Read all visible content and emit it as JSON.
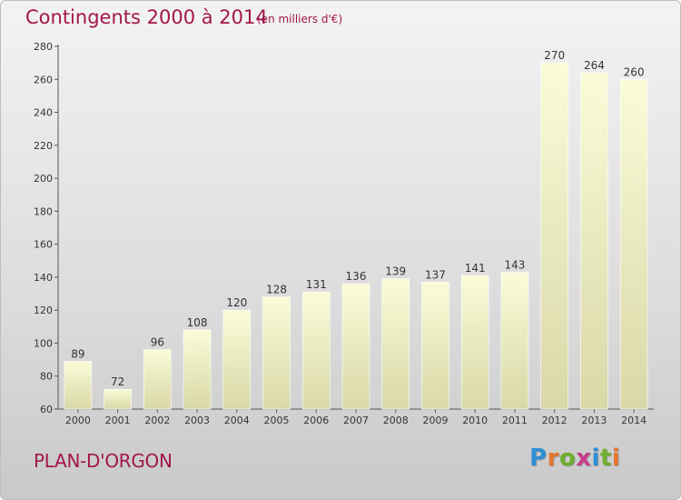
{
  "header": {
    "title": "Contingents 2000 à 2014",
    "subtitle": "(en milliers d'€)"
  },
  "footer": {
    "commune": "PLAN-D'ORGON",
    "brand_letters": [
      "P",
      "r",
      "o",
      "x",
      "i",
      "t",
      "i"
    ]
  },
  "colors": {
    "title": "#a2164b",
    "bar_top": "#fbfbd8",
    "bar_bottom": "#d8d8a8",
    "brand": [
      "#2f8fd5",
      "#e8762d",
      "#6fae2e",
      "#c93a8a",
      "#2f8fd5",
      "#6fae2e",
      "#e8762d"
    ]
  },
  "chart_data": {
    "type": "bar",
    "categories": [
      "2000",
      "2001",
      "2002",
      "2003",
      "2004",
      "2005",
      "2006",
      "2007",
      "2008",
      "2009",
      "2010",
      "2011",
      "2012",
      "2013",
      "2014"
    ],
    "values": [
      89,
      72,
      96,
      108,
      120,
      128,
      131,
      136,
      139,
      137,
      141,
      143,
      270,
      264,
      260
    ],
    "ylim": [
      60,
      280
    ],
    "yticks": [
      60,
      80,
      100,
      120,
      140,
      160,
      180,
      200,
      220,
      240,
      260,
      280
    ],
    "grid": false,
    "data_labels": true
  }
}
